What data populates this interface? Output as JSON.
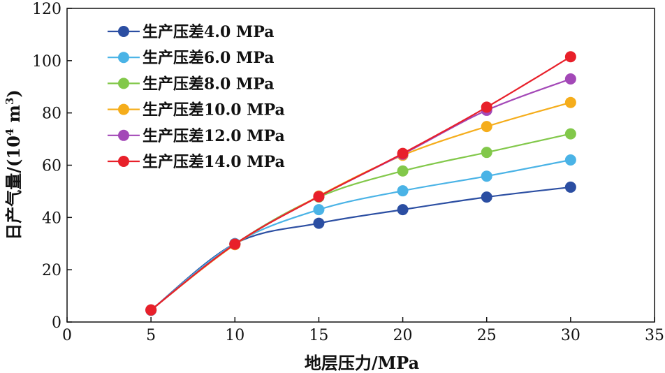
{
  "chart_data": {
    "type": "line",
    "xlabel": "地层压力/MPa",
    "ylabel": "日产气量/(10",
    "ylabel_sup": "4",
    "ylabel_unit": " m",
    "ylabel_sup2": "3",
    "ylabel_close": ")",
    "xlim": [
      0,
      35
    ],
    "ylim": [
      0,
      120
    ],
    "x_ticks": [
      "0",
      "5",
      "10",
      "15",
      "20",
      "25",
      "30",
      "35"
    ],
    "y_ticks": [
      "0",
      "20",
      "40",
      "60",
      "80",
      "100",
      "120"
    ],
    "grid": false,
    "legend_position": "top-left",
    "series": [
      {
        "name": "生产压差4.0 MPa",
        "color": "#2b4ea2",
        "x": [
          5,
          10,
          15,
          20,
          25,
          30
        ],
        "values": [
          4.5,
          30,
          37.8,
          43,
          47.8,
          51.6
        ]
      },
      {
        "name": "生产压差6.0 MPa",
        "color": "#4ab3e6",
        "x": [
          5,
          10,
          15,
          20,
          25,
          30
        ],
        "values": [
          4.5,
          30,
          43,
          50.2,
          55.8,
          62
        ]
      },
      {
        "name": "生产压差8.0 MPa",
        "color": "#82c84a",
        "x": [
          5,
          10,
          15,
          20,
          25,
          30
        ],
        "values": [
          4.6,
          29.8,
          47.8,
          57.8,
          64.9,
          72
        ]
      },
      {
        "name": "生产压差10.0 MPa",
        "color": "#f5ad1b",
        "x": [
          5,
          10,
          15,
          20,
          25,
          30
        ],
        "values": [
          4.6,
          29.6,
          48.2,
          63.8,
          74.8,
          84
        ]
      },
      {
        "name": "生产压差12.0 MPa",
        "color": "#a348b7",
        "x": [
          5,
          10,
          15,
          20,
          25,
          30
        ],
        "values": [
          4.6,
          29.8,
          48,
          64.2,
          81,
          93
        ]
      },
      {
        "name": "生产压差14.0 MPa",
        "color": "#e8202a",
        "x": [
          5,
          10,
          15,
          20,
          25,
          30
        ],
        "values": [
          4.6,
          29.8,
          48,
          64.5,
          82.2,
          101.5
        ]
      }
    ]
  }
}
